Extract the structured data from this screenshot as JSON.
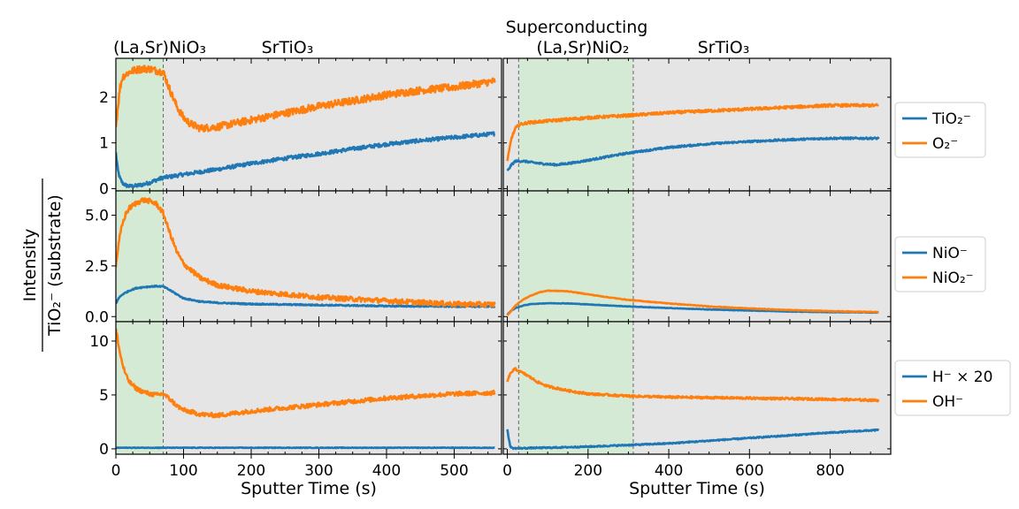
{
  "chart_data": {
    "type": "line",
    "ylabel_top": "Intensity",
    "ylabel_bottom": "TiO₂⁻ (substrate)",
    "xlabel": "Sputter Time (s)",
    "colors": {
      "blue": "#1f77b4",
      "orange": "#ff7f0e",
      "panel_bg": "#e5e5e5",
      "green_shade": "#d5ead5"
    },
    "columns": [
      {
        "name": "left",
        "xlim": [
          0,
          570
        ],
        "xticks": [
          0,
          100,
          200,
          300,
          400,
          500
        ],
        "shade": [
          0,
          70
        ],
        "vlines": [
          70
        ],
        "labels": [
          "(La,Sr)NiO₃",
          "SrTiO₃"
        ]
      },
      {
        "name": "right",
        "xlim": [
          -10,
          950
        ],
        "xticks": [
          0,
          200,
          400,
          600,
          800
        ],
        "shade": [
          28,
          312
        ],
        "vlines": [
          28,
          312
        ],
        "super_label": "Superconducting",
        "labels": [
          "(La,Sr)NiO₂",
          "SrTiO₃"
        ]
      }
    ],
    "rows": [
      {
        "name": "TiO2-O2",
        "ylim": [
          -0.05,
          2.85
        ],
        "yticks": [
          0,
          1,
          2
        ],
        "ytick_labels": [
          "0",
          "1",
          "2"
        ],
        "legend": [
          "TiO₂⁻",
          "O₂⁻"
        ],
        "series": {
          "left": [
            {
              "name": "TiO₂⁻",
              "color": "blue",
              "noise": 0.04,
              "x": [
                0,
                3,
                6,
                10,
                15,
                20,
                30,
                40,
                50,
                60,
                70,
                80,
                100,
                150,
                200,
                250,
                300,
                350,
                400,
                450,
                500,
                560
              ],
              "y": [
                0.78,
                0.4,
                0.22,
                0.12,
                0.07,
                0.05,
                0.06,
                0.09,
                0.13,
                0.19,
                0.24,
                0.26,
                0.31,
                0.42,
                0.55,
                0.66,
                0.76,
                0.87,
                0.97,
                1.05,
                1.12,
                1.2
              ]
            },
            {
              "name": "O₂⁻",
              "color": "orange",
              "noise": 0.08,
              "x": [
                0,
                3,
                6,
                10,
                20,
                30,
                40,
                50,
                60,
                70,
                80,
                90,
                100,
                110,
                125,
                150,
                200,
                250,
                300,
                350,
                400,
                450,
                500,
                560
              ],
              "y": [
                1.35,
                1.8,
                2.2,
                2.45,
                2.55,
                2.6,
                2.62,
                2.62,
                2.58,
                2.55,
                2.15,
                1.8,
                1.55,
                1.42,
                1.32,
                1.35,
                1.5,
                1.65,
                1.8,
                1.92,
                2.05,
                2.15,
                2.22,
                2.35
              ]
            }
          ],
          "right": [
            {
              "name": "TiO₂⁻",
              "color": "blue",
              "noise": 0.02,
              "x": [
                0,
                10,
                20,
                40,
                80,
                120,
                160,
                200,
                300,
                400,
                500,
                600,
                700,
                800,
                920
              ],
              "y": [
                0.38,
                0.52,
                0.6,
                0.6,
                0.55,
                0.52,
                0.56,
                0.62,
                0.78,
                0.9,
                0.98,
                1.03,
                1.07,
                1.1,
                1.1
              ]
            },
            {
              "name": "O₂⁻",
              "color": "orange",
              "noise": 0.03,
              "x": [
                0,
                10,
                20,
                30,
                50,
                100,
                200,
                300,
                400,
                500,
                600,
                700,
                800,
                920
              ],
              "y": [
                0.6,
                1.1,
                1.32,
                1.4,
                1.44,
                1.48,
                1.55,
                1.6,
                1.66,
                1.7,
                1.74,
                1.78,
                1.82,
                1.82
              ]
            }
          ]
        }
      },
      {
        "name": "NiO-NiO2",
        "ylim": [
          -0.25,
          6.2
        ],
        "yticks": [
          0,
          2.5,
          5.0
        ],
        "ytick_labels": [
          "0.0",
          "2.5",
          "5.0"
        ],
        "legend": [
          "NiO⁻",
          "NiO₂⁻"
        ],
        "series": {
          "left": [
            {
              "name": "NiO⁻",
              "color": "blue",
              "noise": 0.03,
              "x": [
                0,
                5,
                10,
                20,
                30,
                40,
                50,
                60,
                70,
                80,
                100,
                125,
                150,
                200,
                300,
                400,
                500,
                560
              ],
              "y": [
                0.65,
                0.95,
                1.1,
                1.28,
                1.4,
                1.45,
                1.48,
                1.5,
                1.48,
                1.3,
                0.9,
                0.74,
                0.68,
                0.62,
                0.57,
                0.52,
                0.5,
                0.5
              ]
            },
            {
              "name": "NiO₂⁻",
              "color": "orange",
              "noise": 0.12,
              "x": [
                0,
                3,
                6,
                10,
                15,
                20,
                30,
                40,
                50,
                60,
                70,
                80,
                90,
                100,
                125,
                150,
                200,
                250,
                300,
                400,
                500,
                560
              ],
              "y": [
                2.5,
                3.3,
                4.0,
                4.6,
                5.1,
                5.35,
                5.6,
                5.75,
                5.7,
                5.55,
                5.1,
                4.1,
                3.2,
                2.6,
                1.9,
                1.55,
                1.25,
                1.1,
                0.95,
                0.78,
                0.62,
                0.6
              ]
            }
          ],
          "right": [
            {
              "name": "NiO⁻",
              "color": "blue",
              "noise": 0.012,
              "x": [
                0,
                10,
                20,
                40,
                60,
                100,
                150,
                200,
                250,
                300,
                400,
                500,
                600,
                700,
                800,
                920
              ],
              "y": [
                0.1,
                0.3,
                0.42,
                0.55,
                0.62,
                0.66,
                0.65,
                0.6,
                0.55,
                0.5,
                0.42,
                0.35,
                0.3,
                0.25,
                0.22,
                0.2
              ]
            },
            {
              "name": "NiO₂⁻",
              "color": "orange",
              "noise": 0.015,
              "x": [
                0,
                10,
                20,
                40,
                60,
                80,
                100,
                150,
                200,
                250,
                300,
                400,
                500,
                600,
                700,
                800,
                920
              ],
              "y": [
                0.05,
                0.3,
                0.55,
                0.85,
                1.05,
                1.2,
                1.28,
                1.25,
                1.1,
                0.95,
                0.82,
                0.65,
                0.5,
                0.4,
                0.32,
                0.27,
                0.22
              ]
            }
          ]
        }
      },
      {
        "name": "H-OH",
        "ylim": [
          -0.5,
          11.8
        ],
        "yticks": [
          0,
          5,
          10
        ],
        "ytick_labels": [
          "0",
          "5",
          "10"
        ],
        "legend": [
          "H⁻ × 20",
          "OH⁻"
        ],
        "series": {
          "left": [
            {
              "name": "H⁻ × 20",
              "color": "blue",
              "noise": 0.03,
              "x": [
                0,
                560
              ],
              "y": [
                0.1,
                0.1
              ]
            },
            {
              "name": "OH⁻",
              "color": "orange",
              "noise": 0.2,
              "x": [
                0,
                2,
                5,
                10,
                15,
                20,
                30,
                40,
                50,
                60,
                70,
                80,
                90,
                100,
                125,
                150,
                200,
                250,
                300,
                350,
                400,
                450,
                500,
                560
              ],
              "y": [
                11.0,
                10.5,
                9.2,
                7.8,
                6.8,
                6.2,
                5.6,
                5.3,
                5.1,
                5.0,
                5.1,
                4.6,
                4.0,
                3.6,
                3.2,
                3.1,
                3.5,
                3.8,
                4.1,
                4.4,
                4.7,
                4.9,
                5.1,
                5.2
              ]
            }
          ],
          "right": [
            {
              "name": "H⁻ × 20",
              "color": "blue",
              "noise": 0.06,
              "x": [
                0,
                4,
                8,
                15,
                30,
                60,
                100,
                200,
                300,
                400,
                500,
                600,
                700,
                800,
                920
              ],
              "y": [
                1.8,
                0.8,
                0.15,
                0.05,
                0.05,
                0.08,
                0.1,
                0.2,
                0.35,
                0.5,
                0.75,
                1.0,
                1.25,
                1.5,
                1.75
              ]
            },
            {
              "name": "OH⁻",
              "color": "orange",
              "noise": 0.1,
              "x": [
                0,
                5,
                10,
                15,
                20,
                30,
                50,
                75,
                100,
                150,
                200,
                300,
                400,
                500,
                600,
                700,
                800,
                920
              ],
              "y": [
                6.2,
                6.8,
                7.1,
                7.3,
                7.4,
                7.2,
                6.8,
                6.2,
                5.8,
                5.4,
                5.1,
                4.9,
                4.8,
                4.75,
                4.7,
                4.65,
                4.6,
                4.5
              ]
            }
          ]
        }
      }
    ]
  }
}
